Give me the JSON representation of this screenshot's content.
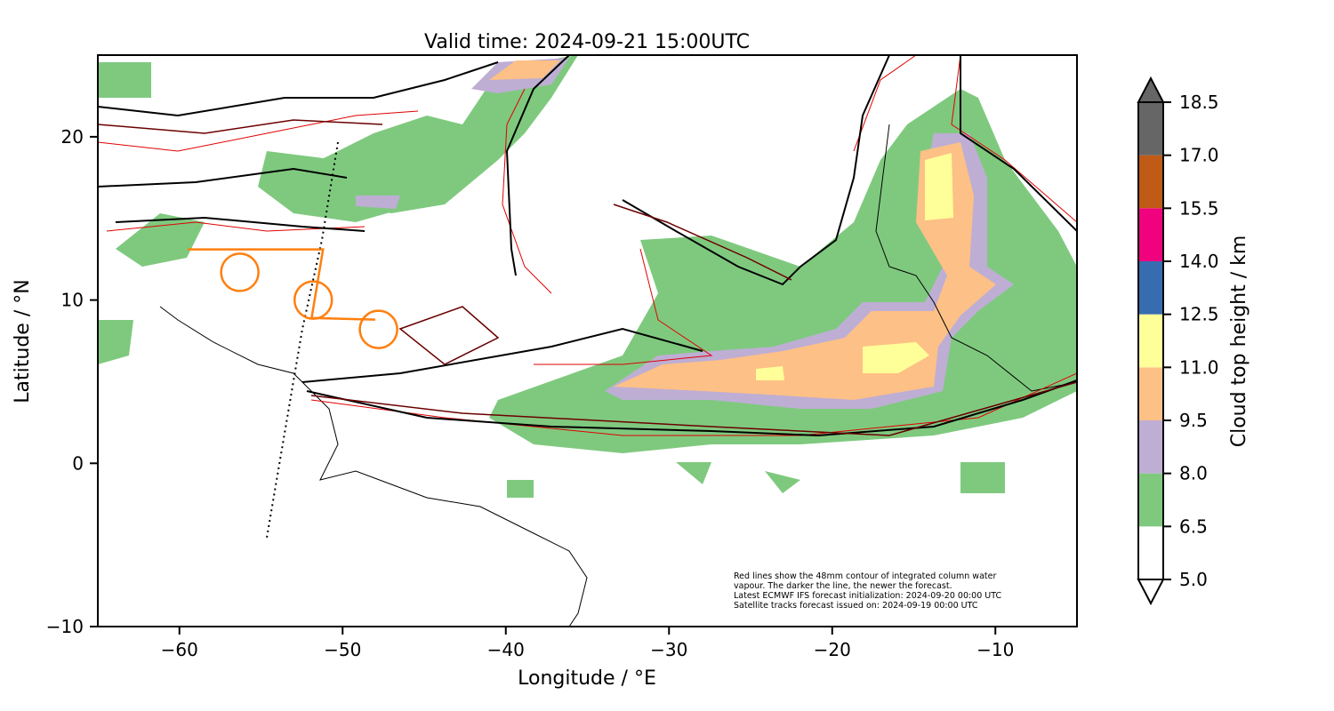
{
  "title": "Valid time: 2024-09-21 15:00UTC",
  "xlabel": "Longitude / °E",
  "ylabel": "Latitude / °N",
  "xticks": [
    -60,
    -50,
    -40,
    -30,
    -20,
    -10
  ],
  "xtick_labels": [
    "−60",
    "−50",
    "−40",
    "−30",
    "−20",
    "−10"
  ],
  "yticks": [
    -10,
    0,
    10,
    20
  ],
  "ytick_labels": [
    "−10",
    "0",
    "10",
    "20"
  ],
  "xlim": [
    -65,
    -5
  ],
  "ylim": [
    -10,
    25
  ],
  "colorbar": {
    "label": "Cloud top height / km",
    "levels": [
      5.0,
      6.5,
      8.0,
      9.5,
      11.0,
      12.5,
      14.0,
      15.5,
      17.0,
      18.5
    ],
    "level_labels": [
      "5.0",
      "6.5",
      "8.0",
      "9.5",
      "11.0",
      "12.5",
      "14.0",
      "15.5",
      "17.0",
      "18.5"
    ],
    "colors": [
      "#ffffff",
      "#7fc97f",
      "#beaed4",
      "#fdc086",
      "#ffff99",
      "#386cb0",
      "#f0027f",
      "#bf5b17",
      "#666666"
    ]
  },
  "annotation": [
    "Red lines show the 48mm contour of integrated column water",
    "vapour. The darker the line, the newer the forecast.",
    "Latest ECMWF IFS forecast initialization: 2024-09-20 00:00 UTC",
    "Satellite tracks forecast issued on: 2024-09-19 00:00 UTC"
  ],
  "satellite_track": {
    "color": "#ff7f0e",
    "path": [
      [
        -59.5,
        13.1
      ],
      [
        -51.2,
        13.1
      ],
      [
        -51.9,
        8.9
      ],
      [
        -48,
        8.8
      ]
    ],
    "circles": [
      [
        -56.3,
        11.7
      ],
      [
        -51.8,
        10.0
      ],
      [
        -47.8,
        8.2
      ]
    ]
  }
}
